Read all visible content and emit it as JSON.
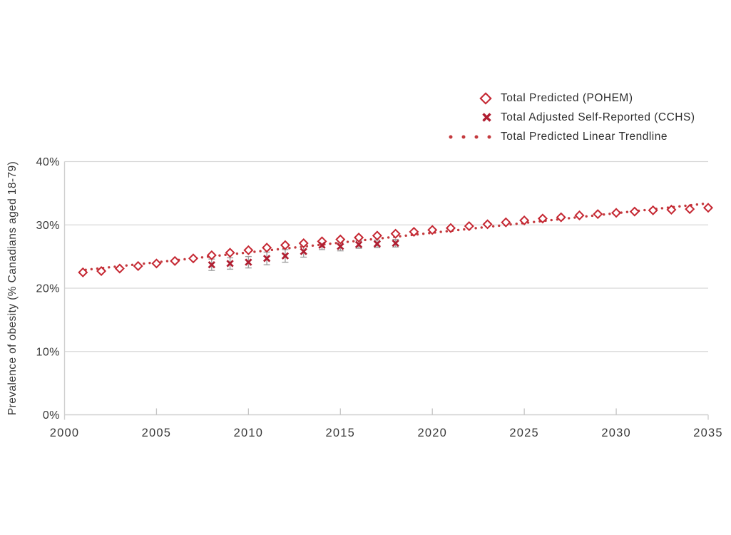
{
  "page": {
    "background": "#ffffff"
  },
  "colors": {
    "pohem_marker": "#C52732",
    "cchs_marker": "#B01E31",
    "trendline": "#C43A3E",
    "gridline": "#D8D8D8",
    "axis_line": "#CFCFCF",
    "tick_mark": "#C4C4C4",
    "error_bar": "#A0A0A0",
    "text": "#3A3A3A"
  },
  "legend": {
    "items": [
      {
        "label": "Total Predicted (POHEM)",
        "marker": "diamond"
      },
      {
        "label": "Total Adjusted Self-Reported (CCHS)",
        "marker": "x"
      },
      {
        "label": "Total Predicted Linear Trendline",
        "marker": "dots"
      }
    ]
  },
  "chart_data": {
    "type": "scatter",
    "title": "",
    "xlabel": "",
    "ylabel": "Prevalence of obesity (% Canadians aged 18-79)",
    "xlim": [
      2000,
      2035
    ],
    "ylim": [
      0,
      40
    ],
    "x_ticks": [
      2000,
      2005,
      2010,
      2015,
      2020,
      2025,
      2030,
      2035
    ],
    "y_ticks": [
      0,
      10,
      20,
      30,
      40
    ],
    "y_tick_labels": [
      "0%",
      "10%",
      "20%",
      "30%",
      "40%"
    ],
    "grid": "horizontal",
    "legend_position": "top-right",
    "series": [
      {
        "name": "Total Predicted (POHEM)",
        "marker": "diamond",
        "x": [
          2001,
          2002,
          2003,
          2004,
          2005,
          2006,
          2007,
          2008,
          2009,
          2010,
          2011,
          2012,
          2013,
          2014,
          2015,
          2016,
          2017,
          2018,
          2019,
          2020,
          2021,
          2022,
          2023,
          2024,
          2025,
          2026,
          2027,
          2028,
          2029,
          2030,
          2031,
          2032,
          2033,
          2034,
          2035
        ],
        "y": [
          22.5,
          22.7,
          23.1,
          23.5,
          23.9,
          24.3,
          24.7,
          25.2,
          25.6,
          26.0,
          26.4,
          26.8,
          27.1,
          27.4,
          27.7,
          28.0,
          28.3,
          28.6,
          28.9,
          29.2,
          29.5,
          29.8,
          30.1,
          30.4,
          30.7,
          31.0,
          31.2,
          31.5,
          31.7,
          31.9,
          32.1,
          32.3,
          32.4,
          32.5,
          32.7
        ]
      },
      {
        "name": "Total Adjusted Self-Reported (CCHS)",
        "marker": "x",
        "x": [
          2008,
          2009,
          2010,
          2011,
          2012,
          2013,
          2014,
          2015,
          2016,
          2017,
          2018
        ],
        "y": [
          23.7,
          23.9,
          24.1,
          24.7,
          25.1,
          25.8,
          26.8,
          26.6,
          26.9,
          27.0,
          27.1
        ],
        "error": [
          0.9,
          0.9,
          0.9,
          1.0,
          1.0,
          0.9,
          0.7,
          0.7,
          0.6,
          0.6,
          0.6
        ]
      },
      {
        "name": "Total Predicted Linear Trendline",
        "marker": "dotted-line",
        "x": [
          2001.15,
          2035
        ],
        "y": [
          22.9,
          33.4
        ]
      }
    ]
  }
}
